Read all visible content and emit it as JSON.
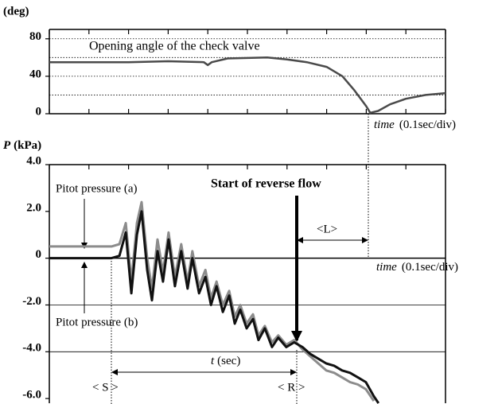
{
  "chart_data": [
    {
      "type": "line",
      "title": "Opening angle of the check valve",
      "ylabel": "(deg)",
      "xlabel": "time",
      "xunit": "(0.1sec/div)",
      "xlim": [
        0,
        10
      ],
      "xticks": [
        0,
        1,
        2,
        3,
        4,
        5,
        6,
        7,
        8,
        9,
        10
      ],
      "ylim": [
        0,
        90
      ],
      "yticks": [
        0,
        40,
        80
      ],
      "ygrid": [
        20,
        40,
        60,
        80
      ],
      "x": [
        0,
        2,
        3,
        3.9,
        4.0,
        4.1,
        4.5,
        5.5,
        6,
        6.5,
        7,
        7.4,
        7.7,
        8.0,
        8.1,
        8.3,
        8.6,
        9,
        9.5,
        10
      ],
      "series": [
        {
          "name": "Opening angle",
          "color": "#4a4a4a",
          "values": [
            55,
            55,
            56,
            55,
            52,
            55,
            59,
            60,
            58,
            55,
            50,
            40,
            25,
            8,
            1,
            3,
            10,
            16,
            20,
            22
          ]
        }
      ]
    },
    {
      "type": "line",
      "ylabel": "P",
      "yunit": "(kPa)",
      "xlabel": "time",
      "xunit": "(0.1sec/div)",
      "xlim": [
        0,
        10
      ],
      "xticks": [
        0,
        1,
        2,
        3,
        4,
        5,
        6,
        7,
        8,
        9,
        10
      ],
      "ylim": [
        -6.2,
        4.0
      ],
      "yticks": [
        {
          "value": 4,
          "label": "4.0"
        },
        {
          "value": 2,
          "label": "2.0"
        },
        0,
        {
          "value": -2,
          "label": "-2.0"
        },
        {
          "value": -4,
          "label": "-4.0"
        },
        {
          "value": -6,
          "label": "-6.0"
        }
      ],
      "ygrid": [
        -4,
        -2,
        0
      ],
      "x": [
        0,
        1.57,
        1.77,
        1.93,
        2.07,
        2.21,
        2.33,
        2.47,
        2.59,
        2.73,
        2.87,
        3.01,
        3.17,
        3.33,
        3.49,
        3.61,
        3.78,
        3.94,
        4.08,
        4.22,
        4.38,
        4.54,
        4.68,
        4.82,
        4.98,
        5.14,
        5.28,
        5.44,
        5.62,
        5.78,
        5.98,
        6.18,
        6.39,
        6.59,
        6.79,
        6.99,
        7.19,
        7.39,
        7.59,
        7.79,
        7.99,
        8.19,
        8.31
      ],
      "series": [
        {
          "name": "Pitot pressure (a)",
          "color": "#8c8c8c",
          "values": [
            0.5,
            0.5,
            0.6,
            1.5,
            -1.0,
            1.5,
            2.4,
            0.0,
            -1.3,
            0.8,
            -0.6,
            1.1,
            -0.8,
            0.6,
            -1.0,
            0.3,
            -1.2,
            -0.5,
            -1.7,
            -1.0,
            -2.0,
            -1.4,
            -2.5,
            -2.0,
            -2.8,
            -2.4,
            -3.3,
            -2.9,
            -3.6,
            -3.3,
            -3.7,
            -3.5,
            -3.9,
            -4.2,
            -4.5,
            -4.8,
            -4.9,
            -5.1,
            -5.3,
            -5.4,
            -5.6,
            -6.1,
            null
          ]
        },
        {
          "name": "Pitot pressure (b)",
          "color": "#111111",
          "values": [
            0,
            0,
            0.1,
            1.1,
            -1.5,
            1.0,
            2.0,
            -0.5,
            -1.8,
            0.3,
            -1.0,
            0.8,
            -1.2,
            0.3,
            -1.3,
            0.0,
            -1.5,
            -0.8,
            -2.0,
            -1.2,
            -2.3,
            -1.6,
            -2.8,
            -2.2,
            -3.0,
            -2.6,
            -3.5,
            -3.0,
            -3.8,
            -3.4,
            -3.8,
            -3.6,
            -3.8,
            -4.1,
            -4.3,
            -4.5,
            -4.6,
            -4.8,
            -4.9,
            -5.1,
            -5.3,
            -5.9,
            -6.2
          ]
        }
      ],
      "annotations": [
        {
          "text": "Start of reverse flow"
        },
        {
          "text": "<L>"
        },
        {
          "text": "t"
        },
        {
          "text": "(sec)"
        },
        {
          "text": "< S >"
        },
        {
          "text": "< R >"
        }
      ]
    }
  ]
}
